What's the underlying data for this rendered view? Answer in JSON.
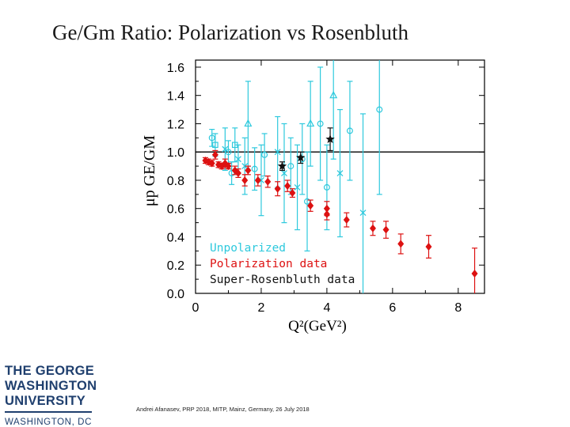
{
  "slide": {
    "title": "Ge/Gm Ratio: Polarization vs Rosenbluth",
    "footer": "Andrei Afanasev, PRP 2018, MITP, Mainz, Germany, 26 July 2018",
    "logo": {
      "line1": "THE GEORGE",
      "line2": "WASHINGTON",
      "line3": "UNIVERSITY",
      "line4": "WASHINGTON, DC"
    }
  },
  "colors": {
    "unpolarized": "#2ec9dd",
    "polarization": "#dd1111",
    "super_rosenbluth": "#111111"
  },
  "chart_data": {
    "type": "scatter",
    "title": "",
    "xlabel": "Q²(GeV²)",
    "ylabel": "μp GE/GM",
    "xlim": [
      0,
      8.8
    ],
    "ylim": [
      0,
      1.65
    ],
    "xticks": [
      0,
      2,
      4,
      6,
      8
    ],
    "yticks": [
      "0.0",
      "0.2",
      "0.4",
      "0.6",
      "0.8",
      "1.0",
      "1.2",
      "1.4",
      "1.6"
    ],
    "reference_line": 1.0,
    "legend": {
      "placement": "bottom-left",
      "entries": [
        "Unpolarized",
        "Polarization  data",
        "Super-Rosenbluth  data"
      ]
    },
    "series": [
      {
        "name": "Unpolarized",
        "marker": "mixed",
        "points": [
          {
            "x": 0.5,
            "y": 1.1,
            "err": 0.06,
            "m": "o"
          },
          {
            "x": 0.6,
            "y": 1.05,
            "err": 0.08,
            "m": "s"
          },
          {
            "x": 0.9,
            "y": 1.02,
            "err": 0.15,
            "m": "x"
          },
          {
            "x": 1.0,
            "y": 1.0,
            "err": 0.08,
            "m": "o"
          },
          {
            "x": 1.1,
            "y": 0.85,
            "err": 0.08,
            "m": "o"
          },
          {
            "x": 1.2,
            "y": 1.05,
            "err": 0.12,
            "m": "s"
          },
          {
            "x": 1.3,
            "y": 0.95,
            "err": 0.1,
            "m": "x"
          },
          {
            "x": 1.5,
            "y": 0.9,
            "err": 0.2,
            "m": "x"
          },
          {
            "x": 1.6,
            "y": 1.2,
            "err": 0.3,
            "m": "^"
          },
          {
            "x": 1.8,
            "y": 0.88,
            "err": 0.15,
            "m": "o"
          },
          {
            "x": 2.0,
            "y": 0.8,
            "err": 0.25,
            "m": "x"
          },
          {
            "x": 2.1,
            "y": 0.98,
            "err": 0.15,
            "m": "o"
          },
          {
            "x": 2.5,
            "y": 1.0,
            "err": 0.25,
            "m": "x"
          },
          {
            "x": 2.7,
            "y": 0.85,
            "err": 0.35,
            "m": "x"
          },
          {
            "x": 2.9,
            "y": 0.9,
            "err": 0.2,
            "m": "o"
          },
          {
            "x": 3.1,
            "y": 0.75,
            "err": 0.3,
            "m": "x"
          },
          {
            "x": 3.25,
            "y": 0.95,
            "err": 0.25,
            "m": "o"
          },
          {
            "x": 3.4,
            "y": 0.65,
            "err": 0.35,
            "m": "o"
          },
          {
            "x": 3.5,
            "y": 1.2,
            "err": 0.3,
            "m": "^"
          },
          {
            "x": 3.8,
            "y": 1.2,
            "err": 0.4,
            "m": "o"
          },
          {
            "x": 4.0,
            "y": 0.75,
            "err": 0.3,
            "m": "o"
          },
          {
            "x": 4.2,
            "y": 1.4,
            "err": 0.45,
            "m": "^"
          },
          {
            "x": 4.4,
            "y": 0.85,
            "err": 0.45,
            "m": "x"
          },
          {
            "x": 4.7,
            "y": 1.15,
            "err": 0.35,
            "m": "o"
          },
          {
            "x": 5.1,
            "y": 0.57,
            "err": 0.7,
            "m": "x"
          },
          {
            "x": 5.6,
            "y": 1.3,
            "err": 0.6,
            "m": "o"
          }
        ]
      },
      {
        "name": "Polarization  data",
        "marker": "diamond",
        "points": [
          {
            "x": 0.3,
            "y": 0.94,
            "err": 0.02
          },
          {
            "x": 0.4,
            "y": 0.93,
            "err": 0.02
          },
          {
            "x": 0.5,
            "y": 0.92,
            "err": 0.02
          },
          {
            "x": 0.6,
            "y": 0.98,
            "err": 0.03
          },
          {
            "x": 0.7,
            "y": 0.91,
            "err": 0.02
          },
          {
            "x": 0.8,
            "y": 0.9,
            "err": 0.02
          },
          {
            "x": 0.9,
            "y": 0.92,
            "err": 0.03
          },
          {
            "x": 1.0,
            "y": 0.9,
            "err": 0.02
          },
          {
            "x": 1.2,
            "y": 0.87,
            "err": 0.03
          },
          {
            "x": 1.3,
            "y": 0.85,
            "err": 0.03
          },
          {
            "x": 1.5,
            "y": 0.8,
            "err": 0.04
          },
          {
            "x": 1.6,
            "y": 0.87,
            "err": 0.03
          },
          {
            "x": 1.9,
            "y": 0.8,
            "err": 0.04
          },
          {
            "x": 2.2,
            "y": 0.79,
            "err": 0.04
          },
          {
            "x": 2.5,
            "y": 0.74,
            "err": 0.05
          },
          {
            "x": 2.8,
            "y": 0.76,
            "err": 0.04
          },
          {
            "x": 2.95,
            "y": 0.71,
            "err": 0.03
          },
          {
            "x": 3.5,
            "y": 0.62,
            "err": 0.04
          },
          {
            "x": 4.0,
            "y": 0.6,
            "err": 0.05
          },
          {
            "x": 4.0,
            "y": 0.56,
            "err": 0.04
          },
          {
            "x": 4.6,
            "y": 0.52,
            "err": 0.05
          },
          {
            "x": 5.4,
            "y": 0.46,
            "err": 0.05
          },
          {
            "x": 5.8,
            "y": 0.45,
            "err": 0.06
          },
          {
            "x": 6.25,
            "y": 0.35,
            "err": 0.07
          },
          {
            "x": 7.1,
            "y": 0.33,
            "err": 0.08
          },
          {
            "x": 8.5,
            "y": 0.14,
            "err": 0.18
          }
        ]
      },
      {
        "name": "Super-Rosenbluth  data",
        "marker": "star",
        "points": [
          {
            "x": 2.64,
            "y": 0.9,
            "err": 0.03
          },
          {
            "x": 3.2,
            "y": 0.96,
            "err": 0.04
          },
          {
            "x": 4.1,
            "y": 1.09,
            "err": 0.08
          }
        ]
      }
    ]
  }
}
